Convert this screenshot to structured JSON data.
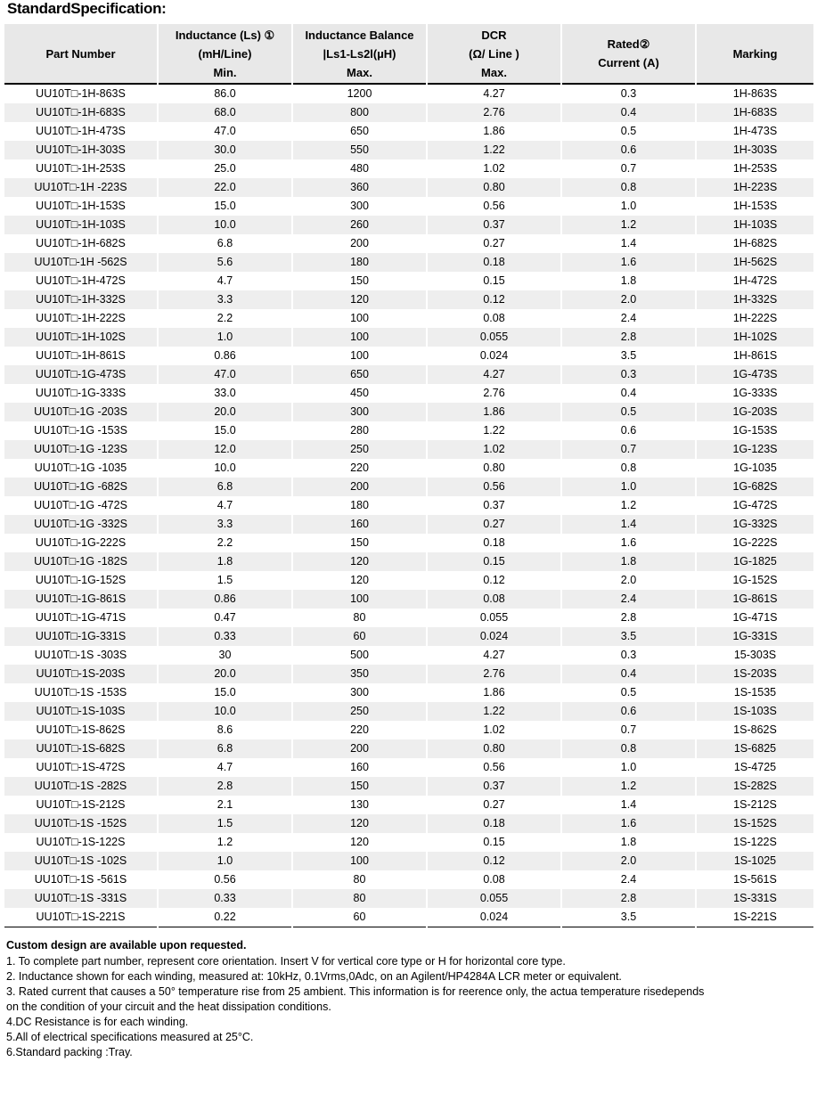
{
  "title": "StandardSpecification:",
  "headers": [
    [
      "Part Number"
    ],
    [
      "Inductance (Ls) ①",
      "(mH/Line)",
      "Min."
    ],
    [
      "Inductance Balance",
      "|Ls1-Ls2l(µH)",
      "Max."
    ],
    [
      "DCR",
      "(Ω/ Line )",
      "Max."
    ],
    [
      "Rated②",
      "Current   (A)"
    ],
    [
      "Marking"
    ]
  ],
  "rows": [
    [
      "UU10T□-1H-863S",
      "86.0",
      "1200",
      "4.27",
      "0.3",
      "1H-863S"
    ],
    [
      "UU10T□-1H-683S",
      "68.0",
      "800",
      "2.76",
      "0.4",
      "1H-683S"
    ],
    [
      "UU10T□-1H-473S",
      "47.0",
      "650",
      "1.86",
      "0.5",
      "1H-473S"
    ],
    [
      "UU10T□-1H-303S",
      "30.0",
      "550",
      "1.22",
      "0.6",
      "1H-303S"
    ],
    [
      "UU10T□-1H-253S",
      "25.0",
      "480",
      "1.02",
      "0.7",
      "1H-253S"
    ],
    [
      "UU10T□-1H -223S",
      "22.0",
      "360",
      "0.80",
      "0.8",
      "1H-223S"
    ],
    [
      "UU10T□-1H-153S",
      "15.0",
      "300",
      "0.56",
      "1.0",
      "1H-153S"
    ],
    [
      "UU10T□-1H-103S",
      "10.0",
      "260",
      "0.37",
      "1.2",
      "1H-103S"
    ],
    [
      "UU10T□-1H-682S",
      "6.8",
      "200",
      "0.27",
      "1.4",
      "1H-682S"
    ],
    [
      "UU10T□-1H -562S",
      "5.6",
      "180",
      "0.18",
      "1.6",
      "1H-562S"
    ],
    [
      "UU10T□-1H-472S",
      "4.7",
      "150",
      "0.15",
      "1.8",
      "1H-472S"
    ],
    [
      "UU10T□-1H-332S",
      "3.3",
      "120",
      "0.12",
      "2.0",
      "1H-332S"
    ],
    [
      "UU10T□-1H-222S",
      "2.2",
      "100",
      "0.08",
      "2.4",
      "1H-222S"
    ],
    [
      "UU10T□-1H-102S",
      "1.0",
      "100",
      "0.055",
      "2.8",
      "1H-102S"
    ],
    [
      "UU10T□-1H-861S",
      "0.86",
      "100",
      "0.024",
      "3.5",
      "1H-861S"
    ],
    [
      "UU10T□-1G-473S",
      "47.0",
      "650",
      "4.27",
      "0.3",
      "1G-473S"
    ],
    [
      "UU10T□-1G-333S",
      "33.0",
      "450",
      "2.76",
      "0.4",
      "1G-333S"
    ],
    [
      "UU10T□-1G -203S",
      "20.0",
      "300",
      "1.86",
      "0.5",
      "1G-203S"
    ],
    [
      "UU10T□-1G -153S",
      "15.0",
      "280",
      "1.22",
      "0.6",
      "1G-153S"
    ],
    [
      "UU10T□-1G -123S",
      "12.0",
      "250",
      "1.02",
      "0.7",
      "1G-123S"
    ],
    [
      "UU10T□-1G -1035",
      "10.0",
      "220",
      "0.80",
      "0.8",
      "1G-1035"
    ],
    [
      "UU10T□-1G -682S",
      "6.8",
      "200",
      "0.56",
      "1.0",
      "1G-682S"
    ],
    [
      "UU10T□-1G -472S",
      "4.7",
      "180",
      "0.37",
      "1.2",
      "1G-472S"
    ],
    [
      "UU10T□-1G -332S",
      "3.3",
      "160",
      "0.27",
      "1.4",
      "1G-332S"
    ],
    [
      "UU10T□-1G-222S",
      "2.2",
      "150",
      "0.18",
      "1.6",
      "1G-222S"
    ],
    [
      "UU10T□-1G -182S",
      "1.8",
      "120",
      "0.15",
      "1.8",
      "1G-1825"
    ],
    [
      "UU10T□-1G-152S",
      "1.5",
      "120",
      "0.12",
      "2.0",
      "1G-152S"
    ],
    [
      "UU10T□-1G-861S",
      "0.86",
      "100",
      "0.08",
      "2.4",
      "1G-861S"
    ],
    [
      "UU10T□-1G-471S",
      "0.47",
      "80",
      "0.055",
      "2.8",
      "1G-471S"
    ],
    [
      "UU10T□-1G-331S",
      "0.33",
      "60",
      "0.024",
      "3.5",
      "1G-331S"
    ],
    [
      "UU10T□-1S -303S",
      "30",
      "500",
      "4.27",
      "0.3",
      "15-303S"
    ],
    [
      "UU10T□-1S-203S",
      "20.0",
      "350",
      "2.76",
      "0.4",
      "1S-203S"
    ],
    [
      "UU10T□-1S -153S",
      "15.0",
      "300",
      "1.86",
      "0.5",
      "1S-1535"
    ],
    [
      "UU10T□-1S-103S",
      "10.0",
      "250",
      "1.22",
      "0.6",
      "1S-103S"
    ],
    [
      "UU10T□-1S-862S",
      "8.6",
      "220",
      "1.02",
      "0.7",
      "1S-862S"
    ],
    [
      "UU10T□-1S-682S",
      "6.8",
      "200",
      "0.80",
      "0.8",
      "1S-6825"
    ],
    [
      "UU10T□-1S-472S",
      "4.7",
      "160",
      "0.56",
      "1.0",
      "1S-4725"
    ],
    [
      "UU10T□-1S -282S",
      "2.8",
      "150",
      "0.37",
      "1.2",
      "1S-282S"
    ],
    [
      "UU10T□-1S-212S",
      "2.1",
      "130",
      "0.27",
      "1.4",
      "1S-212S"
    ],
    [
      "UU10T□-1S -152S",
      "1.5",
      "120",
      "0.18",
      "1.6",
      "1S-152S"
    ],
    [
      "UU10T□-1S-122S",
      "1.2",
      "120",
      "0.15",
      "1.8",
      "1S-122S"
    ],
    [
      "UU10T□-1S -102S",
      "1.0",
      "100",
      "0.12",
      "2.0",
      "1S-1025"
    ],
    [
      "UU10T□-1S -561S",
      "0.56",
      "80",
      "0.08",
      "2.4",
      "1S-561S"
    ],
    [
      "UU10T□-1S -331S",
      "0.33",
      "80",
      "0.055",
      "2.8",
      "1S-331S"
    ],
    [
      "UU10T□-1S-221S",
      "0.22",
      "60",
      "0.024",
      "3.5",
      "1S-221S"
    ]
  ],
  "notes": {
    "heading": "Custom design are available upon requested.",
    "lines": [
      "1. To complete part number,  represent core orientation. Insert V for vertical core type or H for horizontal core type.",
      "2. Inductance shown for each winding, measured at: 10kHz, 0.1Vrms,0Adc, on an Agilent/HP4284A LCR meter or equivalent.",
      "3. Rated current that causes a 50° temperature rise from 25 ambient. This information is for reerence only, the actua temperature risedepends",
      "on the condition of your circuit and the heat dissipation conditions.",
      "4.DC Resistance is for each winding.",
      "5.All of electrical specifications measured at 25°C.",
      "6.Standard packing :Tray."
    ]
  }
}
